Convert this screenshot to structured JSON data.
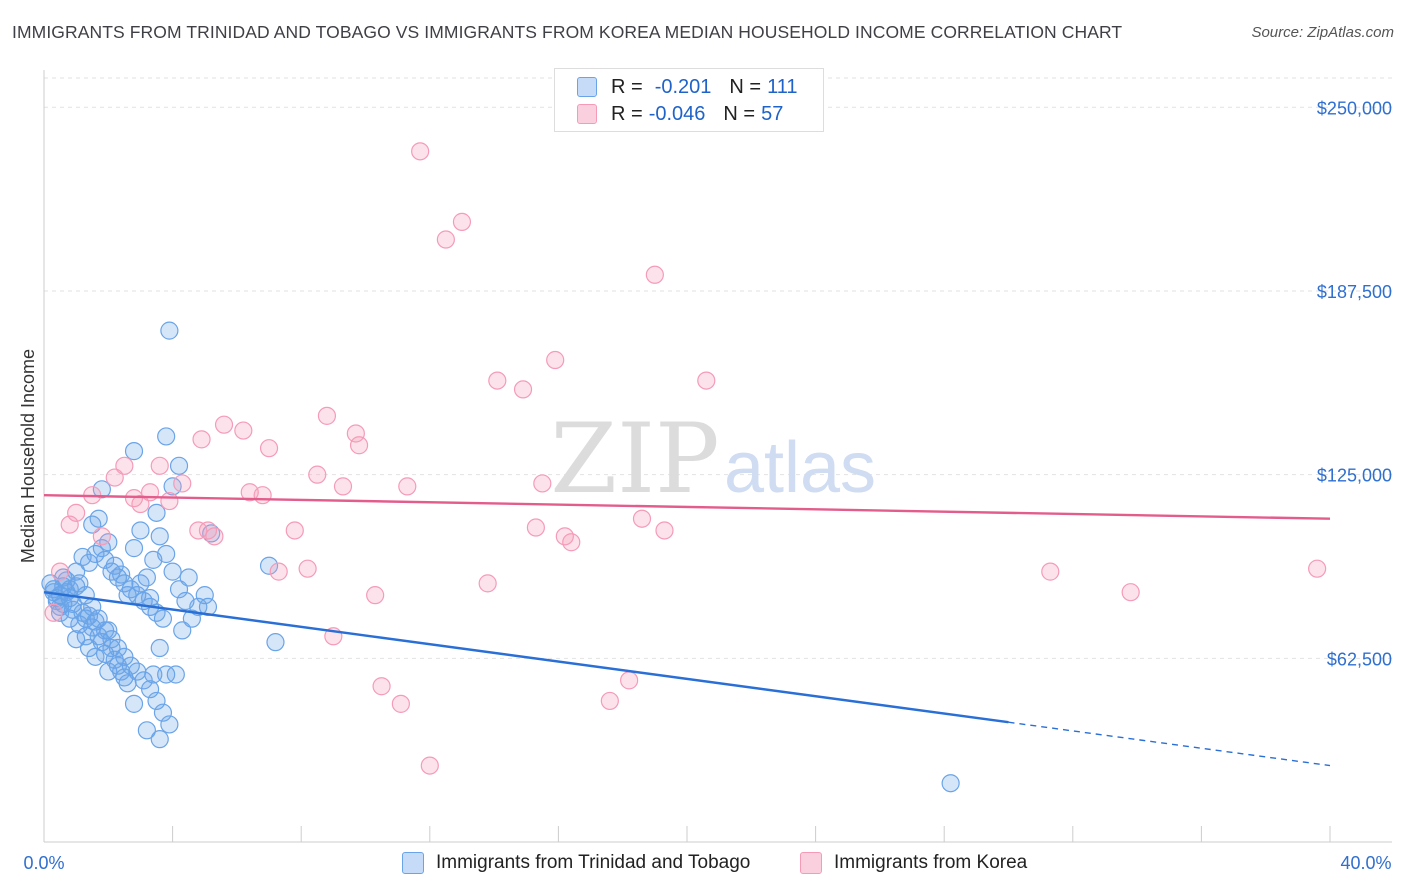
{
  "title": "IMMIGRANTS FROM TRINIDAD AND TOBAGO VS IMMIGRANTS FROM KOREA MEDIAN HOUSEHOLD INCOME CORRELATION CHART",
  "source": "Source: ZipAtlas.com",
  "watermark": {
    "zip": "ZIP",
    "atlas": "atlas"
  },
  "legend": {
    "r_label": "R =",
    "n_label": "N =",
    "items": [
      {
        "r": "-0.201",
        "n": "111"
      },
      {
        "r": "-0.046",
        "n": "57"
      }
    ]
  },
  "chart_data": {
    "type": "scatter",
    "title": "IMMIGRANTS FROM TRINIDAD AND TOBAGO VS IMMIGRANTS FROM KOREA MEDIAN HOUSEHOLD INCOME CORRELATION CHART",
    "xlabel": "",
    "ylabel": "Median Household Income",
    "xlim": [
      0,
      40
    ],
    "ylim": [
      0,
      262000
    ],
    "x_tick_labels": [
      "0.0%",
      "40.0%"
    ],
    "y_ticks": [
      62500,
      125000,
      187500,
      250000
    ],
    "y_tick_labels": [
      "$62,500",
      "$125,000",
      "$187,500",
      "$250,000"
    ],
    "grid": true,
    "legend_position": "top-center",
    "series": [
      {
        "name": "Immigrants from Trinidad and Tobago",
        "color": "#6aa4e8",
        "line_color": "#2a6fd6",
        "r": -0.201,
        "n": 111,
        "trend": {
          "x": [
            0,
            30,
            40
          ],
          "y": [
            85000,
            41000,
            26000
          ],
          "solid_until_x": 30
        },
        "points": [
          [
            0.2,
            88000
          ],
          [
            0.3,
            85000
          ],
          [
            0.4,
            82000
          ],
          [
            0.5,
            80000
          ],
          [
            0.6,
            87000
          ],
          [
            0.7,
            89000
          ],
          [
            0.8,
            83000
          ],
          [
            0.9,
            81000
          ],
          [
            0.3,
            86000
          ],
          [
            0.5,
            84000
          ],
          [
            0.6,
            81000
          ],
          [
            0.8,
            86000
          ],
          [
            1.0,
            87000
          ],
          [
            1.1,
            88000
          ],
          [
            0.4,
            83000
          ],
          [
            0.7,
            85000
          ],
          [
            0.9,
            79000
          ],
          [
            1.0,
            92000
          ],
          [
            1.2,
            78000
          ],
          [
            1.3,
            76000
          ],
          [
            1.4,
            77000
          ],
          [
            1.5,
            73000
          ],
          [
            1.6,
            75000
          ],
          [
            1.7,
            70000
          ],
          [
            1.8,
            68000
          ],
          [
            1.9,
            64000
          ],
          [
            2.0,
            72000
          ],
          [
            2.1,
            66000
          ],
          [
            2.2,
            62000
          ],
          [
            2.3,
            60000
          ],
          [
            2.4,
            58000
          ],
          [
            2.5,
            56000
          ],
          [
            2.6,
            54000
          ],
          [
            1.2,
            97000
          ],
          [
            1.4,
            95000
          ],
          [
            1.6,
            98000
          ],
          [
            1.8,
            100000
          ],
          [
            2.0,
            102000
          ],
          [
            2.2,
            94000
          ],
          [
            2.4,
            91000
          ],
          [
            1.5,
            108000
          ],
          [
            1.7,
            110000
          ],
          [
            1.9,
            96000
          ],
          [
            2.1,
            92000
          ],
          [
            2.3,
            90000
          ],
          [
            2.5,
            88000
          ],
          [
            2.7,
            86000
          ],
          [
            2.9,
            84000
          ],
          [
            3.1,
            82000
          ],
          [
            3.3,
            80000
          ],
          [
            3.5,
            78000
          ],
          [
            3.7,
            76000
          ],
          [
            3.0,
            88000
          ],
          [
            3.2,
            90000
          ],
          [
            3.4,
            96000
          ],
          [
            3.6,
            104000
          ],
          [
            3.8,
            98000
          ],
          [
            4.0,
            92000
          ],
          [
            4.2,
            86000
          ],
          [
            4.4,
            82000
          ],
          [
            4.6,
            76000
          ],
          [
            4.8,
            80000
          ],
          [
            5.0,
            84000
          ],
          [
            2.8,
            100000
          ],
          [
            3.0,
            106000
          ],
          [
            3.5,
            112000
          ],
          [
            4.0,
            121000
          ],
          [
            1.8,
            120000
          ],
          [
            2.8,
            133000
          ],
          [
            3.8,
            138000
          ],
          [
            4.2,
            128000
          ],
          [
            5.2,
            105000
          ],
          [
            3.9,
            174000
          ],
          [
            1.3,
            84000
          ],
          [
            1.5,
            80000
          ],
          [
            1.7,
            76000
          ],
          [
            1.9,
            72000
          ],
          [
            2.1,
            69000
          ],
          [
            2.3,
            66000
          ],
          [
            2.5,
            63000
          ],
          [
            2.7,
            60000
          ],
          [
            2.9,
            58000
          ],
          [
            3.1,
            55000
          ],
          [
            3.3,
            52000
          ],
          [
            3.5,
            48000
          ],
          [
            3.7,
            44000
          ],
          [
            3.9,
            40000
          ],
          [
            2.8,
            47000
          ],
          [
            3.2,
            38000
          ],
          [
            3.6,
            35000
          ],
          [
            3.4,
            57000
          ],
          [
            3.8,
            57000
          ],
          [
            4.1,
            57000
          ],
          [
            3.6,
            66000
          ],
          [
            3.3,
            83000
          ],
          [
            4.3,
            72000
          ],
          [
            5.1,
            80000
          ],
          [
            7.0,
            94000
          ],
          [
            7.2,
            68000
          ],
          [
            28.2,
            20000
          ],
          [
            0.6,
            90000
          ],
          [
            0.5,
            78000
          ],
          [
            1.1,
            74000
          ],
          [
            1.3,
            70000
          ],
          [
            0.8,
            76000
          ],
          [
            1.0,
            69000
          ],
          [
            1.4,
            66000
          ],
          [
            1.6,
            63000
          ],
          [
            2.0,
            58000
          ],
          [
            2.6,
            84000
          ],
          [
            4.5,
            90000
          ]
        ]
      },
      {
        "name": "Immigrants from Korea",
        "color": "#f59bb8",
        "line_color": "#e35d8c",
        "r": -0.046,
        "n": 57,
        "trend": {
          "x": [
            0,
            40
          ],
          "y": [
            118000,
            110000
          ],
          "solid_until_x": 40
        },
        "points": [
          [
            0.3,
            78000
          ],
          [
            0.5,
            92000
          ],
          [
            0.8,
            108000
          ],
          [
            1.0,
            112000
          ],
          [
            1.5,
            118000
          ],
          [
            1.8,
            104000
          ],
          [
            2.2,
            124000
          ],
          [
            2.5,
            128000
          ],
          [
            2.8,
            117000
          ],
          [
            3.0,
            115000
          ],
          [
            3.3,
            119000
          ],
          [
            3.6,
            128000
          ],
          [
            3.9,
            116000
          ],
          [
            4.3,
            122000
          ],
          [
            4.8,
            106000
          ],
          [
            5.1,
            106000
          ],
          [
            5.3,
            104000
          ],
          [
            5.6,
            142000
          ],
          [
            6.2,
            140000
          ],
          [
            6.4,
            119000
          ],
          [
            6.8,
            118000
          ],
          [
            7.0,
            134000
          ],
          [
            7.3,
            92000
          ],
          [
            7.8,
            106000
          ],
          [
            8.2,
            93000
          ],
          [
            8.5,
            125000
          ],
          [
            8.8,
            145000
          ],
          [
            9.0,
            70000
          ],
          [
            9.3,
            121000
          ],
          [
            9.7,
            139000
          ],
          [
            9.8,
            135000
          ],
          [
            10.3,
            84000
          ],
          [
            10.5,
            53000
          ],
          [
            11.1,
            47000
          ],
          [
            11.3,
            121000
          ],
          [
            11.7,
            235000
          ],
          [
            12.0,
            26000
          ],
          [
            12.5,
            205000
          ],
          [
            13.0,
            211000
          ],
          [
            13.8,
            88000
          ],
          [
            14.1,
            157000
          ],
          [
            14.9,
            154000
          ],
          [
            15.3,
            107000
          ],
          [
            15.5,
            122000
          ],
          [
            15.9,
            164000
          ],
          [
            16.2,
            104000
          ],
          [
            16.4,
            102000
          ],
          [
            17.6,
            48000
          ],
          [
            18.2,
            55000
          ],
          [
            18.6,
            110000
          ],
          [
            19.0,
            193000
          ],
          [
            19.3,
            106000
          ],
          [
            20.6,
            157000
          ],
          [
            31.3,
            92000
          ],
          [
            33.8,
            85000
          ],
          [
            39.6,
            93000
          ],
          [
            4.9,
            137000
          ]
        ]
      }
    ]
  }
}
